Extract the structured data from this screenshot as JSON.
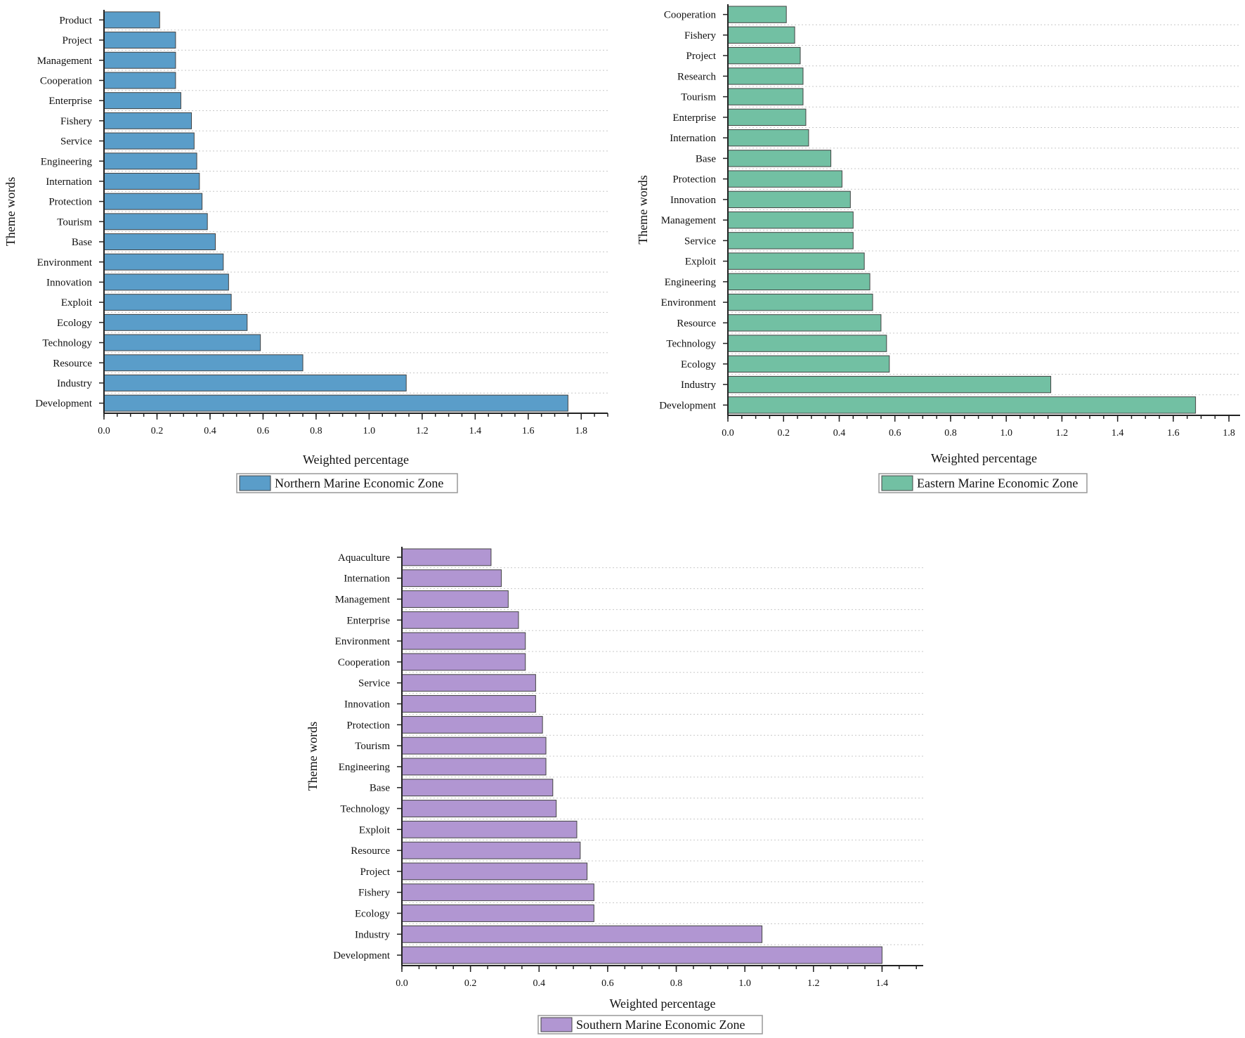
{
  "chart_data": [
    {
      "type": "bar",
      "orientation": "horizontal",
      "title": "",
      "xlabel": "Weighted percentage",
      "ylabel": "Theme words",
      "legend": "Northern Marine Economic Zone",
      "legend_placement": "bottom",
      "color": "#5a9dc9",
      "xlim": [
        0,
        1.9
      ],
      "xticks": [
        "0.0",
        "0.2",
        "0.4",
        "0.6",
        "0.8",
        "1.0",
        "1.2",
        "1.4",
        "1.6",
        "1.8"
      ],
      "grid": "horizontal dotted",
      "categories": [
        "Product",
        "Project",
        "Management",
        "Cooperation",
        "Enterprise",
        "Fishery",
        "Service",
        "Engineering",
        "Internation",
        "Protection",
        "Tourism",
        "Base",
        "Environment",
        "Innovation",
        "Exploit",
        "Ecology",
        "Technology",
        "Resource",
        "Industry",
        "Development"
      ],
      "values": [
        0.21,
        0.27,
        0.27,
        0.27,
        0.29,
        0.33,
        0.34,
        0.35,
        0.36,
        0.37,
        0.39,
        0.42,
        0.45,
        0.47,
        0.48,
        0.54,
        0.59,
        0.75,
        1.14,
        1.75
      ]
    },
    {
      "type": "bar",
      "orientation": "horizontal",
      "title": "",
      "xlabel": "Weighted percentage",
      "ylabel": "Theme words",
      "legend": "Eastern Marine Economic Zone",
      "legend_placement": "bottom",
      "color": "#72c0a3",
      "xlim": [
        0,
        1.84
      ],
      "xticks": [
        "0.0",
        "0.2",
        "0.4",
        "0.6",
        "0.8",
        "1.0",
        "1.2",
        "1.4",
        "1.6",
        "1.8"
      ],
      "grid": "horizontal dotted",
      "categories": [
        "Cooperation",
        "Fishery",
        "Project",
        "Research",
        "Tourism",
        "Enterprise",
        "Internation",
        "Base",
        "Protection",
        "Innovation",
        "Management",
        "Service",
        "Exploit",
        "Engineering",
        "Environment",
        "Resource",
        "Technology",
        "Ecology",
        "Industry",
        "Development"
      ],
      "values": [
        0.21,
        0.24,
        0.26,
        0.27,
        0.27,
        0.28,
        0.29,
        0.37,
        0.41,
        0.44,
        0.45,
        0.45,
        0.49,
        0.51,
        0.52,
        0.55,
        0.57,
        0.58,
        1.16,
        1.68
      ]
    },
    {
      "type": "bar",
      "orientation": "horizontal",
      "title": "",
      "xlabel": "Weighted percentage",
      "ylabel": "Theme words",
      "legend": "Southern Marine Economic Zone",
      "legend_placement": "bottom",
      "color": "#b196d2",
      "xlim": [
        0,
        1.52
      ],
      "xticks": [
        "0.0",
        "0.2",
        "0.4",
        "0.6",
        "0.8",
        "1.0",
        "1.2",
        "1.4"
      ],
      "grid": "horizontal dotted",
      "categories": [
        "Aquaculture",
        "Internation",
        "Management",
        "Enterprise",
        "Environment",
        "Cooperation",
        "Service",
        "Innovation",
        "Protection",
        "Tourism",
        "Engineering",
        "Base",
        "Technology",
        "Exploit",
        "Resource",
        "Project",
        "Fishery",
        "Ecology",
        "Industry",
        "Development"
      ],
      "values": [
        0.26,
        0.29,
        0.31,
        0.34,
        0.36,
        0.36,
        0.39,
        0.39,
        0.41,
        0.42,
        0.42,
        0.44,
        0.45,
        0.51,
        0.52,
        0.54,
        0.56,
        0.56,
        1.05,
        1.4
      ]
    }
  ]
}
